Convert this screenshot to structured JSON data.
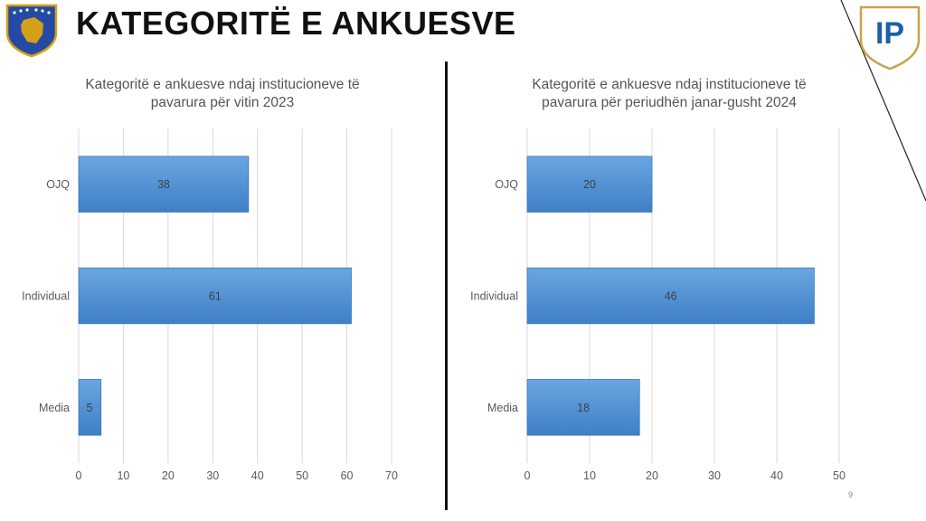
{
  "slide": {
    "title": "KATEGORITË E ANKUESVE",
    "page_number": "9",
    "logo_text": "IP"
  },
  "colors": {
    "bar_top": "#6aa6e0",
    "bar_bottom": "#3e7fc6",
    "bar_stroke": "#3a78bd",
    "grid": "#d9d9d9",
    "label": "#595959",
    "data_label": "#404040",
    "logo_blue": "#1e5fa8",
    "logo_gold": "#c9a24a",
    "emblem_blue": "#244aa5",
    "emblem_gold": "#d4a017"
  },
  "icons": {
    "emblem": "kosovo-emblem-icon",
    "logo": "ip-logo-icon"
  },
  "chart_data": [
    {
      "type": "bar",
      "orientation": "horizontal",
      "title_lines": [
        "Kategoritë e ankuesve ndaj institucioneve të",
        "pavarura për vitin 2023"
      ],
      "categories": [
        "OJQ",
        "Individual",
        "Media"
      ],
      "values": [
        38,
        61,
        5
      ],
      "data_labels": [
        "38",
        "61",
        "5"
      ],
      "xlim": [
        0,
        70
      ],
      "xticks": [
        "0",
        "10",
        "20",
        "30",
        "40",
        "50",
        "60",
        "70"
      ],
      "grid": true,
      "legend": "none"
    },
    {
      "type": "bar",
      "orientation": "horizontal",
      "title_lines": [
        "Kategoritë e ankuesve ndaj institucioneve të",
        "pavarura për periudhën janar-gusht 2024"
      ],
      "categories": [
        "OJQ",
        "Individual",
        "Media"
      ],
      "values": [
        20,
        46,
        18
      ],
      "data_labels": [
        "20",
        "46",
        "18"
      ],
      "xlim": [
        0,
        50
      ],
      "xticks": [
        "0",
        "10",
        "20",
        "30",
        "40",
        "50"
      ],
      "grid": true,
      "legend": "none"
    }
  ]
}
